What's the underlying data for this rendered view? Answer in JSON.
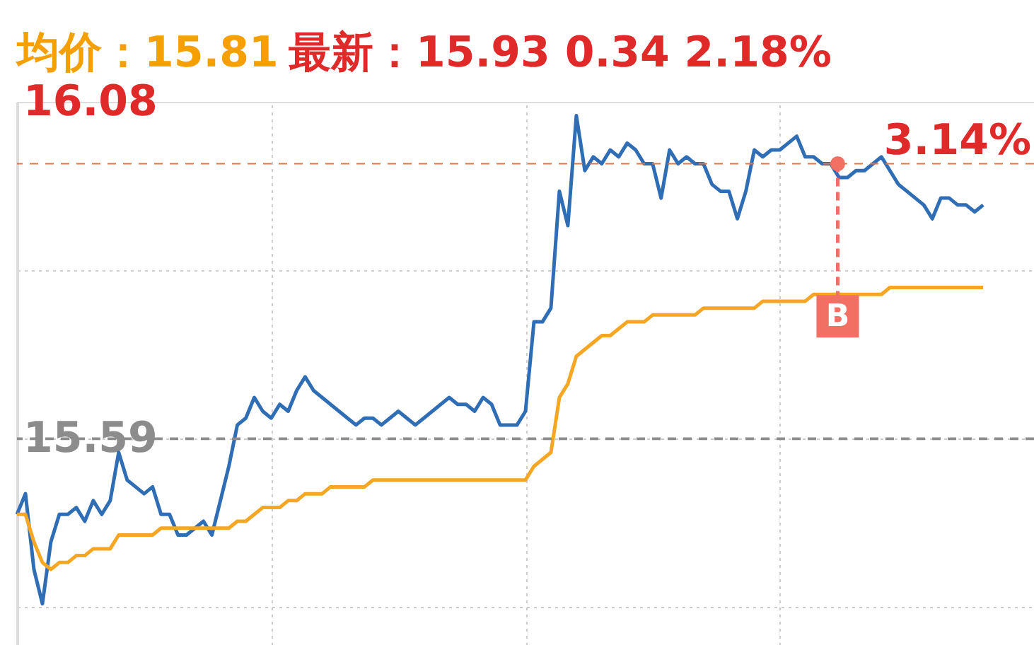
{
  "chart_data": {
    "type": "line",
    "title": "均价：15.81",
    "subtitle": "最新：15.93  0.34  2.18%",
    "categories": [
      null,
      null,
      null,
      null,
      null,
      null,
      null,
      null,
      null,
      null,
      null,
      null,
      null,
      null,
      null,
      null,
      null,
      null,
      null,
      null,
      null,
      null,
      null,
      null,
      null,
      null,
      null,
      null,
      null,
      null,
      null,
      null,
      null,
      null,
      null,
      null,
      null,
      null,
      null,
      null,
      null,
      null,
      null,
      null,
      null,
      null,
      null,
      null,
      null,
      null,
      null,
      null,
      null,
      null,
      null,
      null,
      null,
      null,
      null,
      null,
      null,
      null,
      null,
      null,
      null,
      null,
      null,
      null,
      null,
      null,
      null,
      null,
      null,
      null,
      null,
      null,
      null,
      null,
      null,
      null,
      null,
      null,
      null,
      null,
      null,
      null,
      null,
      null,
      null,
      null,
      null,
      null,
      null,
      null,
      null,
      null,
      null,
      null,
      null,
      null,
      null,
      null,
      null,
      null,
      null,
      null,
      null,
      null,
      null,
      null,
      null,
      null,
      null,
      null,
      null,
      null,
      null,
      null,
      null,
      null,
      null
    ],
    "ylim": [
      15.29,
      16.08
    ],
    "yticks": [
      16.08,
      {
        "value": 15.835,
        "label": null
      },
      15.59,
      {
        "value": 15.345,
        "label": null
      }
    ],
    "grid": true,
    "marker": "none",
    "line_style": "solid",
    "series": [
      {
        "color": "#2f6db5",
        "values": [
          15.48,
          15.51,
          15.4,
          15.35,
          15.44,
          15.48,
          15.48,
          15.49,
          15.47,
          15.5,
          15.48,
          15.5,
          15.57,
          15.53,
          15.52,
          15.51,
          15.52,
          15.48,
          15.48,
          15.45,
          15.45,
          15.46,
          15.47,
          15.45,
          15.5,
          15.55,
          15.61,
          15.62,
          15.65,
          15.63,
          15.62,
          15.64,
          15.63,
          15.66,
          15.68,
          15.66,
          15.65,
          15.64,
          15.63,
          15.62,
          15.61,
          15.62,
          15.62,
          15.61,
          15.62,
          15.63,
          15.62,
          15.61,
          15.62,
          15.63,
          15.64,
          15.65,
          15.64,
          15.64,
          15.63,
          15.65,
          15.64,
          15.61,
          15.61,
          15.61,
          15.63,
          15.76,
          15.76,
          15.78,
          15.95,
          15.9,
          16.06,
          15.98,
          16.0,
          15.99,
          16.01,
          16.0,
          16.02,
          16.01,
          15.99,
          15.99,
          15.94,
          16.01,
          15.99,
          16.0,
          15.99,
          15.99,
          15.96,
          15.95,
          15.95,
          15.91,
          15.95,
          16.01,
          16.0,
          16.01,
          16.01,
          16.02,
          16.03,
          16.0,
          16.0,
          15.99,
          15.99,
          15.97,
          15.97,
          15.98,
          15.98,
          15.99,
          16.0,
          15.98,
          15.96,
          15.95,
          15.94,
          15.93,
          15.91,
          15.94,
          15.94,
          15.93,
          15.93,
          15.92,
          15.93,
          null,
          null,
          null,
          null,
          null,
          null
        ]
      },
      {
        "color": "#f5a623",
        "values": [
          15.48,
          15.48,
          15.44,
          15.41,
          15.4,
          15.41,
          15.41,
          15.42,
          15.42,
          15.43,
          15.43,
          15.43,
          15.45,
          15.45,
          15.45,
          15.45,
          15.45,
          15.46,
          15.46,
          15.46,
          15.46,
          15.46,
          15.46,
          15.46,
          15.46,
          15.46,
          15.47,
          15.47,
          15.48,
          15.49,
          15.49,
          15.49,
          15.5,
          15.5,
          15.51,
          15.51,
          15.51,
          15.52,
          15.52,
          15.52,
          15.52,
          15.52,
          15.53,
          15.53,
          15.53,
          15.53,
          15.53,
          15.53,
          15.53,
          15.53,
          15.53,
          15.53,
          15.53,
          15.53,
          15.53,
          15.53,
          15.53,
          15.53,
          15.53,
          15.53,
          15.53,
          15.55,
          15.56,
          15.57,
          15.65,
          15.67,
          15.71,
          15.72,
          15.73,
          15.74,
          15.74,
          15.75,
          15.76,
          15.76,
          15.76,
          15.77,
          15.77,
          15.77,
          15.77,
          15.77,
          15.77,
          15.78,
          15.78,
          15.78,
          15.78,
          15.78,
          15.78,
          15.78,
          15.79,
          15.79,
          15.79,
          15.79,
          15.79,
          15.79,
          15.8,
          15.8,
          15.8,
          15.8,
          15.8,
          15.8,
          15.8,
          15.8,
          15.8,
          15.81,
          15.81,
          15.81,
          15.81,
          15.81,
          15.81,
          15.81,
          15.81,
          15.81,
          15.81,
          15.81,
          15.81,
          null,
          null,
          null,
          null,
          null,
          null
        ]
      }
    ],
    "ref_lines": [
      {
        "axis": "y",
        "value": 15.59,
        "color": "#8c8c8c",
        "line_style": "dashed"
      },
      {
        "axis": "y",
        "value": 15.99,
        "color": "#e8743b",
        "line_style": "dashed"
      }
    ],
    "annotations": [
      {
        "text": "B",
        "y": 15.99
      },
      "3.14%"
    ]
  }
}
